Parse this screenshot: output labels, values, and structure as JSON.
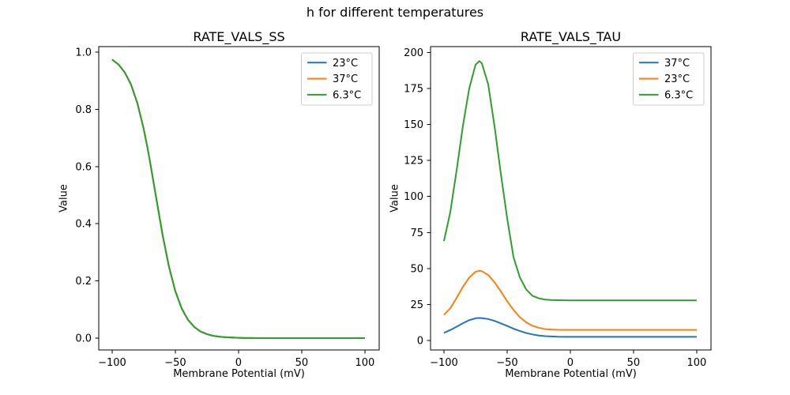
{
  "figure": {
    "suptitle": "h for different temperatures",
    "background": "#ffffff",
    "colors": {
      "blue": "#1f77b4",
      "orange": "#ff7f0e",
      "green": "#2ca02c",
      "spine": "#000000",
      "legend_edge": "#cccccc"
    }
  },
  "chart_data": [
    {
      "type": "line",
      "title": "RATE_VALS_SS",
      "xlabel": "Membrane Potential (mV)",
      "ylabel": "Value",
      "xlim": [
        -110.6,
        111.3
      ],
      "ylim": [
        -0.0414,
        1.0193
      ],
      "xticks": [
        -100,
        -50,
        0,
        50,
        100
      ],
      "xtick_labels": [
        "−100",
        "−50",
        "0",
        "50",
        "100"
      ],
      "yticks": [
        0.0,
        0.2,
        0.4,
        0.6,
        0.8,
        1.0
      ],
      "ytick_labels": [
        "0.0",
        "0.2",
        "0.4",
        "0.6",
        "0.8",
        "1.0"
      ],
      "grid": false,
      "legend_loc": "upper right",
      "legend": [
        {
          "label": "23°C",
          "color": "#1f77b4"
        },
        {
          "label": "37°C",
          "color": "#ff7f0e"
        },
        {
          "label": "6.3°C",
          "color": "#2ca02c"
        }
      ],
      "x": [
        -100,
        -95,
        -90,
        -85,
        -80,
        -75,
        -72,
        -70,
        -65,
        -60,
        -55,
        -50,
        -45,
        -40,
        -35,
        -30,
        -25,
        -20,
        -15,
        -10,
        -5,
        0,
        5,
        10,
        15,
        20,
        25,
        30,
        35,
        40,
        45,
        50,
        55,
        60,
        65,
        70,
        75,
        80,
        85,
        90,
        95,
        100
      ],
      "series": [
        {
          "name": "23°C",
          "color": "#1f77b4",
          "values": [
            0.974,
            0.957,
            0.929,
            0.886,
            0.821,
            0.731,
            0.665,
            0.616,
            0.487,
            0.359,
            0.249,
            0.164,
            0.104,
            0.064,
            0.039,
            0.023,
            0.014,
            0.008,
            0.005,
            0.003,
            0.002,
            0.001,
            0.0005,
            0.0003,
            0.0002,
            0.0001,
            0.0001,
            0.0001,
            0.0001,
            0.0001,
            0.0001,
            0.0001,
            0.0001,
            0.0001,
            0.0001,
            0.0001,
            0.0001,
            0.0001,
            0.0001,
            0.0001,
            0.0001,
            0.0001
          ]
        },
        {
          "name": "37°C",
          "color": "#ff7f0e",
          "values": [
            0.974,
            0.957,
            0.929,
            0.886,
            0.821,
            0.731,
            0.665,
            0.616,
            0.487,
            0.359,
            0.249,
            0.164,
            0.104,
            0.064,
            0.039,
            0.023,
            0.014,
            0.008,
            0.005,
            0.003,
            0.002,
            0.001,
            0.0005,
            0.0003,
            0.0002,
            0.0001,
            0.0001,
            0.0001,
            0.0001,
            0.0001,
            0.0001,
            0.0001,
            0.0001,
            0.0001,
            0.0001,
            0.0001,
            0.0001,
            0.0001,
            0.0001,
            0.0001,
            0.0001,
            0.0001
          ]
        },
        {
          "name": "6.3°C",
          "color": "#2ca02c",
          "values": [
            0.974,
            0.957,
            0.929,
            0.886,
            0.821,
            0.731,
            0.665,
            0.616,
            0.487,
            0.359,
            0.249,
            0.164,
            0.104,
            0.064,
            0.039,
            0.023,
            0.014,
            0.008,
            0.005,
            0.003,
            0.002,
            0.001,
            0.0005,
            0.0003,
            0.0002,
            0.0001,
            0.0001,
            0.0001,
            0.0001,
            0.0001,
            0.0001,
            0.0001,
            0.0001,
            0.0001,
            0.0001,
            0.0001,
            0.0001,
            0.0001,
            0.0001,
            0.0001,
            0.0001,
            0.0001
          ]
        }
      ]
    },
    {
      "type": "line",
      "title": "RATE_VALS_TAU",
      "xlabel": "Membrane Potential (mV)",
      "ylabel": "Value",
      "xlim": [
        -110.6,
        111.3
      ],
      "ylim": [
        -6.6,
        204.1
      ],
      "xticks": [
        -100,
        -50,
        0,
        50,
        100
      ],
      "xtick_labels": [
        "−100",
        "−50",
        "0",
        "50",
        "100"
      ],
      "yticks": [
        0,
        25,
        50,
        75,
        100,
        125,
        150,
        175,
        200
      ],
      "ytick_labels": [
        "0",
        "25",
        "50",
        "75",
        "100",
        "125",
        "150",
        "175",
        "200"
      ],
      "grid": false,
      "legend_loc": "upper right",
      "legend": [
        {
          "label": "37°C",
          "color": "#1f77b4"
        },
        {
          "label": "23°C",
          "color": "#ff7f0e"
        },
        {
          "label": "6.3°C",
          "color": "#2ca02c"
        }
      ],
      "x": [
        -100,
        -95,
        -90,
        -85,
        -80,
        -75,
        -72,
        -70,
        -65,
        -60,
        -55,
        -50,
        -45,
        -40,
        -35,
        -30,
        -25,
        -20,
        -15,
        -10,
        -5,
        0,
        5,
        10,
        15,
        20,
        25,
        30,
        35,
        40,
        45,
        50,
        55,
        60,
        65,
        70,
        75,
        80,
        85,
        90,
        95,
        100
      ],
      "series": [
        {
          "name": "37°C",
          "color": "#1f77b4",
          "values": [
            5.3,
            7.2,
            9.5,
            12.0,
            14.1,
            15.4,
            15.6,
            15.5,
            14.9,
            13.6,
            11.9,
            10.1,
            8.2,
            6.6,
            5.2,
            4.2,
            3.4,
            3.0,
            2.8,
            2.6,
            2.55,
            2.5,
            2.5,
            2.5,
            2.5,
            2.5,
            2.5,
            2.5,
            2.5,
            2.5,
            2.5,
            2.5,
            2.5,
            2.5,
            2.5,
            2.5,
            2.5,
            2.5,
            2.5,
            2.5,
            2.5,
            2.5
          ]
        },
        {
          "name": "23°C",
          "color": "#ff7f0e",
          "values": [
            17.8,
            22.3,
            29.5,
            37.2,
            43.7,
            47.7,
            48.4,
            48.1,
            45.5,
            40.5,
            34.1,
            27.3,
            21.2,
            16.3,
            12.6,
            10.2,
            8.8,
            7.9,
            7.6,
            7.4,
            7.35,
            7.3,
            7.3,
            7.3,
            7.3,
            7.3,
            7.3,
            7.3,
            7.3,
            7.3,
            7.3,
            7.3,
            7.3,
            7.3,
            7.3,
            7.3,
            7.3,
            7.3,
            7.3,
            7.3,
            7.3,
            7.3
          ]
        },
        {
          "name": "6.3°C",
          "color": "#2ca02c",
          "values": [
            69,
            89,
            118,
            149,
            175,
            191.5,
            194,
            192.5,
            178,
            149,
            116,
            85,
            58,
            44,
            35.5,
            31,
            29.3,
            28.4,
            28.1,
            28.0,
            27.9,
            27.8,
            27.8,
            27.8,
            27.8,
            27.8,
            27.8,
            27.8,
            27.8,
            27.8,
            27.8,
            27.8,
            27.8,
            27.8,
            27.8,
            27.8,
            27.8,
            27.8,
            27.8,
            27.8,
            27.8,
            27.8
          ]
        }
      ]
    }
  ]
}
